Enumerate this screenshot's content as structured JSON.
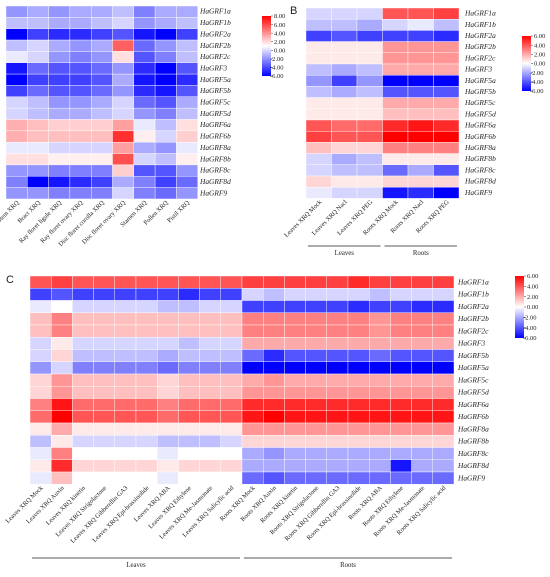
{
  "panels": [
    {
      "letter": "A"
    },
    {
      "letter": "B"
    },
    {
      "letter": "C"
    }
  ],
  "chart_data": [
    {
      "type": "heatmap",
      "panel": "A",
      "rows": [
        "HaGRF1a",
        "HaGRF1b",
        "HaGRF2a",
        "HaGRF2b",
        "HaGRF2c",
        "HaGRF3",
        "HaGRF5a",
        "HaGRF5b",
        "HaGRF5c",
        "HaGRF5d",
        "HaGRF6a",
        "HaGRF6b",
        "HaGRF8a",
        "HaGRF8b",
        "HaGRF8c",
        "HaGRF8d",
        "HaGRF9"
      ],
      "columns": [
        "Stem XRQ",
        "Bract XRQ",
        "Ray floret ligule XRQ",
        "Ray floret ovary XRQ",
        "Disc floret corolla XRQ",
        "Disc floret ovary XRQ",
        "Stamen XRQ",
        "Pollen XRQ",
        "Pistil XRQ"
      ],
      "values": [
        [
          -2.5,
          -2.0,
          -2.5,
          -2.0,
          -2.0,
          -1.5,
          -3.0,
          -2.0,
          -2.0
        ],
        [
          -1.5,
          -1.5,
          -2.0,
          -2.0,
          -1.5,
          -1.0,
          -2.5,
          -2.0,
          -1.5
        ],
        [
          -6.0,
          -4.5,
          -5.0,
          -5.0,
          -4.5,
          -4.0,
          -5.5,
          -6.0,
          -4.5
        ],
        [
          -1.5,
          -1.0,
          -2.0,
          -2.5,
          -2.0,
          5.0,
          -3.5,
          -2.5,
          -1.5
        ],
        [
          -0.5,
          -1.0,
          -2.5,
          -3.0,
          -2.5,
          1.0,
          -4.0,
          -3.0,
          -1.5
        ],
        [
          -5.5,
          -3.5,
          -4.0,
          -4.0,
          -3.5,
          -2.5,
          -5.0,
          -6.0,
          -4.0
        ],
        [
          -6.0,
          -4.5,
          -4.5,
          -4.5,
          -4.0,
          -2.0,
          -5.5,
          -6.0,
          -5.0
        ],
        [
          -4.5,
          -3.5,
          -4.0,
          -4.0,
          -3.5,
          -2.5,
          -5.0,
          -5.5,
          -4.0
        ],
        [
          -1.0,
          -1.5,
          -2.5,
          -2.5,
          -2.0,
          -1.0,
          -3.5,
          -4.0,
          -2.0
        ],
        [
          -1.0,
          -1.5,
          -2.0,
          -2.0,
          -1.5,
          -1.0,
          -2.5,
          -3.0,
          -1.5
        ],
        [
          2.5,
          2.0,
          1.5,
          1.5,
          1.5,
          3.0,
          -0.5,
          -1.5,
          1.0
        ],
        [
          2.5,
          2.0,
          2.0,
          2.0,
          2.0,
          6.5,
          0.5,
          -1.0,
          1.5
        ],
        [
          -0.5,
          -0.5,
          -1.0,
          -1.0,
          -1.0,
          3.0,
          -2.0,
          -2.5,
          -0.5
        ],
        [
          1.0,
          1.0,
          0.5,
          0.5,
          0.5,
          5.5,
          -1.0,
          -1.5,
          0.5
        ],
        [
          -2.5,
          -2.5,
          -3.0,
          -3.0,
          -3.0,
          1.5,
          -4.0,
          -4.0,
          -2.5
        ],
        [
          -3.0,
          -6.0,
          -5.5,
          -5.0,
          -4.5,
          -2.0,
          -3.0,
          -4.5,
          -3.5
        ],
        [
          -2.5,
          -2.5,
          -3.0,
          -3.0,
          -3.0,
          -1.0,
          -3.0,
          -3.5,
          -2.5
        ]
      ],
      "color_range": [
        -6,
        8
      ],
      "colorbar_ticks": [
        "8.00",
        "6.00",
        "4.00",
        "2.00",
        "0.00",
        "-2.00",
        "-4.00",
        "-6.00"
      ],
      "colors": {
        "low": "#0000ff",
        "mid": "#ffffff",
        "high": "#ff0000"
      }
    },
    {
      "type": "heatmap",
      "panel": "B",
      "rows": [
        "HaGRF1a",
        "HaGRF1b",
        "HaGRF2a",
        "HaGRF2b",
        "HaGRF2c",
        "HaGRF3",
        "HaGRF5a",
        "HaGRF5b",
        "HaGRF5c",
        "HaGRF5d",
        "HaGRF6a",
        "HaGRF6b",
        "HaGRF8a",
        "HaGRF8b",
        "HaGRF8c",
        "HaGRF8d",
        "HaGRF9"
      ],
      "columns": [
        "Leaves XRQ Mock",
        "Leaves XRQ Nacl",
        "Leaves XRQ PEG",
        "Roots XRQ Mock",
        "Roots XRQ Nacl",
        "Roots XRQ PEG"
      ],
      "groups": [
        {
          "label": "Leaves",
          "start": 0,
          "end": 2
        },
        {
          "label": "Roots",
          "start": 3,
          "end": 5
        }
      ],
      "values": [
        [
          -1.0,
          -1.0,
          -1.0,
          4.0,
          4.0,
          4.5
        ],
        [
          -1.5,
          -1.5,
          -2.0,
          -1.0,
          -0.5,
          -1.5
        ],
        [
          -4.5,
          -4.0,
          -4.5,
          -4.5,
          -4.5,
          -5.0
        ],
        [
          0.5,
          0.5,
          0.5,
          2.5,
          2.5,
          2.5
        ],
        [
          0.5,
          0.5,
          0.5,
          2.5,
          2.5,
          2.5
        ],
        [
          -1.5,
          -2.0,
          -1.5,
          2.0,
          2.0,
          2.0
        ],
        [
          -2.5,
          -4.5,
          -2.5,
          -6.0,
          -6.0,
          -6.0
        ],
        [
          -1.5,
          -2.0,
          -1.5,
          -4.0,
          -4.0,
          -4.0
        ],
        [
          0.5,
          0.5,
          0.5,
          2.0,
          2.0,
          2.0
        ],
        [
          0.5,
          0.5,
          0.5,
          1.5,
          1.5,
          1.5
        ],
        [
          4.0,
          3.5,
          3.5,
          5.0,
          5.5,
          5.0
        ],
        [
          4.5,
          4.0,
          4.0,
          6.0,
          6.5,
          6.0
        ],
        [
          1.5,
          1.0,
          1.0,
          3.0,
          3.0,
          3.0
        ],
        [
          -1.0,
          -2.0,
          -1.5,
          0.5,
          0.5,
          0.5
        ],
        [
          -1.0,
          -1.5,
          -1.5,
          -3.5,
          -2.0,
          -4.0
        ],
        [
          1.0,
          0.5,
          0.5,
          1.0,
          1.0,
          1.0
        ],
        [
          -0.5,
          -1.0,
          -1.0,
          -5.5,
          -5.0,
          -6.0
        ]
      ],
      "color_range": [
        -6,
        6
      ],
      "colorbar_ticks": [
        "6.00",
        "4.00",
        "2.00",
        "0.00",
        "-2.00",
        "-4.00",
        "-6.00"
      ],
      "colors": {
        "low": "#0000ff",
        "mid": "#ffffff",
        "high": "#ff0000"
      }
    },
    {
      "type": "heatmap",
      "panel": "C",
      "rows": [
        "HaGRF1a",
        "HaGRF1b",
        "HaGRF2a",
        "HaGRF2b",
        "HaGRF2c",
        "HaGRF3",
        "HaGRF5b",
        "HaGRF5a",
        "HaGRF5c",
        "HaGRF5d",
        "HaGRF6a",
        "HaGRF6b",
        "HaGRF8a",
        "HaGRF8b",
        "HaGRF8c",
        "HaGRF8d",
        "HaGRF9"
      ],
      "columns": [
        "Leaves XRQ Mock",
        "Leaves XRQ Auxin",
        "Leaves XRQ kinetin",
        "Leaves XRQ Strigolactone",
        "Leaves XRQ Gibberellin GA3",
        "Leaves XRQ Epi-brassinolide",
        "Leaves XRQ ABA",
        "Leaves XRQ Ethylene",
        "Leaves XRQ Me-Jasmonate",
        "Leaves XRQ Salicylic acid",
        "Roots XRQ Mock",
        "Roots XRQ Auxin",
        "Roots XRQ kinetin",
        "Roots XRQ Strigolactone",
        "Roots XRQ Gibberellin GA3",
        "Roots XRQ Epi-brassinolide",
        "Roots XRQ ABA",
        "Roots XRQ Ethylene",
        "Roots XRQ Me-Jasmonate",
        "Roots XRQ Salicylic acid"
      ],
      "groups": [
        {
          "label": "Leaves",
          "start": 0,
          "end": 9
        },
        {
          "label": "Roots",
          "start": 10,
          "end": 19
        }
      ],
      "values": [
        [
          4.0,
          4.5,
          4.0,
          4.0,
          4.0,
          4.0,
          4.0,
          4.0,
          4.0,
          4.0,
          4.5,
          4.5,
          4.5,
          4.5,
          4.5,
          5.0,
          4.5,
          4.5,
          4.5,
          4.5
        ],
        [
          -4.5,
          -4.0,
          -4.5,
          -4.5,
          -4.5,
          -4.5,
          -4.5,
          -5.0,
          -4.5,
          -4.5,
          -1.0,
          -1.5,
          -1.0,
          -1.0,
          -1.0,
          -1.0,
          -1.5,
          -1.0,
          -1.0,
          -1.0
        ],
        [
          -0.5,
          0.0,
          -1.0,
          -1.0,
          -1.0,
          -1.0,
          -1.5,
          -1.5,
          -1.0,
          -1.0,
          -4.5,
          -4.5,
          -4.5,
          -4.5,
          -4.5,
          -5.0,
          -4.5,
          -4.5,
          -5.0,
          -5.0
        ],
        [
          1.5,
          3.0,
          1.5,
          1.5,
          1.5,
          1.5,
          1.5,
          1.5,
          1.5,
          1.5,
          3.0,
          3.0,
          3.0,
          3.0,
          3.0,
          3.0,
          2.5,
          3.0,
          3.0,
          3.0
        ],
        [
          1.5,
          3.0,
          1.5,
          1.5,
          1.5,
          1.5,
          1.5,
          1.5,
          1.5,
          1.5,
          3.0,
          3.0,
          3.0,
          3.0,
          3.0,
          3.0,
          2.5,
          3.0,
          3.0,
          3.0
        ],
        [
          -1.0,
          0.5,
          -1.0,
          -1.0,
          -1.0,
          -1.0,
          -1.0,
          -1.5,
          -1.0,
          -1.0,
          2.0,
          2.0,
          2.0,
          2.0,
          2.0,
          2.0,
          2.0,
          2.0,
          2.0,
          2.0
        ],
        [
          -1.0,
          1.0,
          -1.5,
          -1.5,
          -1.5,
          -1.5,
          -2.0,
          -1.5,
          -1.5,
          -1.5,
          -3.5,
          -5.0,
          -4.0,
          -4.0,
          -4.0,
          -4.0,
          -3.5,
          -4.0,
          -4.0,
          -4.0
        ],
        [
          -2.5,
          -1.0,
          -3.0,
          -3.0,
          -3.0,
          -3.0,
          -3.5,
          -3.0,
          -3.0,
          -3.0,
          -6.0,
          -6.0,
          -6.0,
          -6.0,
          -6.0,
          -6.0,
          -6.0,
          -6.0,
          -6.0,
          -6.0
        ],
        [
          1.0,
          2.5,
          1.5,
          1.5,
          1.5,
          1.5,
          1.0,
          1.5,
          1.5,
          1.5,
          2.0,
          2.5,
          2.0,
          2.0,
          2.0,
          2.0,
          2.0,
          2.0,
          2.0,
          2.0
        ],
        [
          1.0,
          2.5,
          1.5,
          1.5,
          1.5,
          1.5,
          1.0,
          1.5,
          1.5,
          1.5,
          2.5,
          2.5,
          2.5,
          2.5,
          2.5,
          2.5,
          2.5,
          2.5,
          2.5,
          2.5
        ],
        [
          3.0,
          5.5,
          3.5,
          3.5,
          3.5,
          3.5,
          3.0,
          3.5,
          3.5,
          3.5,
          5.0,
          5.0,
          5.0,
          5.0,
          5.0,
          5.0,
          5.0,
          5.0,
          5.0,
          5.0
        ],
        [
          3.5,
          6.0,
          4.0,
          4.0,
          4.0,
          4.0,
          3.5,
          4.0,
          4.0,
          4.0,
          5.5,
          6.0,
          5.5,
          5.5,
          5.5,
          5.5,
          5.5,
          5.5,
          5.5,
          5.5
        ],
        [
          0.5,
          2.0,
          0.5,
          0.5,
          0.5,
          0.5,
          0.5,
          0.5,
          0.5,
          0.5,
          2.5,
          2.5,
          2.5,
          2.5,
          2.5,
          2.5,
          2.5,
          2.5,
          2.5,
          2.5
        ],
        [
          -1.5,
          0.5,
          -1.0,
          -1.0,
          -1.0,
          -1.0,
          -1.5,
          -1.5,
          -1.5,
          -1.0,
          1.0,
          1.0,
          1.0,
          1.0,
          1.0,
          1.0,
          1.0,
          1.0,
          1.0,
          1.0
        ],
        [
          -0.5,
          3.0,
          0.0,
          0.0,
          0.0,
          0.0,
          -0.5,
          0.0,
          0.0,
          0.0,
          -2.0,
          -2.5,
          -2.0,
          -2.0,
          -2.0,
          -2.0,
          -2.0,
          -2.0,
          -2.0,
          -2.0
        ],
        [
          0.5,
          5.0,
          1.0,
          1.0,
          1.0,
          1.0,
          0.5,
          1.0,
          1.0,
          1.0,
          -2.0,
          -2.0,
          -2.0,
          -2.0,
          -2.0,
          -2.0,
          -2.0,
          -5.5,
          -2.0,
          -2.0
        ],
        [
          -0.5,
          1.5,
          0.0,
          0.0,
          0.0,
          0.0,
          -0.5,
          0.0,
          0.0,
          0.0,
          -3.5,
          -4.0,
          -3.5,
          -3.5,
          -3.5,
          -3.5,
          -3.5,
          -3.5,
          -3.5,
          -3.5
        ]
      ],
      "color_range": [
        -6,
        6
      ],
      "colorbar_ticks": [
        "6.00",
        "4.00",
        "2.00",
        "0.00",
        "-2.00",
        "-4.00",
        "-6.00"
      ],
      "colors": {
        "low": "#0000ff",
        "mid": "#ffffff",
        "high": "#ff0000"
      }
    }
  ]
}
